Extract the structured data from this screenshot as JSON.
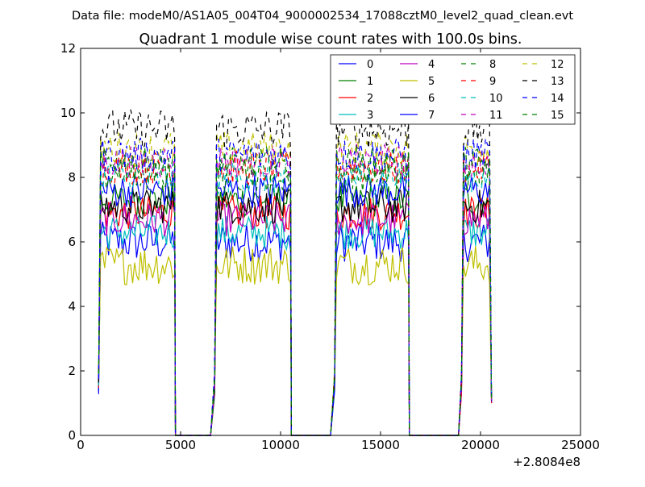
{
  "suptitle": "Data file: modeM0/AS1A05_004T04_9000002534_17088cztM0_level2_quad_clean.evt",
  "chart_data": {
    "type": "line",
    "title": "Quadrant 1 module wise count rates with 100.0s bins.",
    "xlabel": "",
    "ylabel": "",
    "x_offset_label": "+2.8084e8",
    "xlim": [
      0,
      25000
    ],
    "ylim": [
      0,
      12
    ],
    "xticks": [
      0,
      5000,
      10000,
      15000,
      20000,
      25000
    ],
    "xtick_labels": [
      "0",
      "5000",
      "10000",
      "15000",
      "20000",
      "25000"
    ],
    "yticks": [
      0,
      2,
      4,
      6,
      8,
      10,
      12
    ],
    "ytick_labels": [
      "0",
      "2",
      "4",
      "6",
      "8",
      "10",
      "12"
    ],
    "grid": false,
    "legend_position": "top-right",
    "bin_width": 100,
    "segments": [
      {
        "start": 900,
        "end": 4700,
        "gap_end": 6500
      },
      {
        "start": 6700,
        "end": 10500,
        "gap_end": 12500
      },
      {
        "start": 12700,
        "end": 16400,
        "gap_end": 18900
      },
      {
        "start": 19050,
        "end": 20550,
        "gap_end": null
      }
    ],
    "series": [
      {
        "name": "0",
        "color": "#0000ff",
        "dash": "solid",
        "mean": 6.0,
        "noise": 0.35
      },
      {
        "name": "1",
        "color": "#008000",
        "dash": "solid",
        "mean": 7.3,
        "noise": 0.3
      },
      {
        "name": "2",
        "color": "#ff0000",
        "dash": "solid",
        "mean": 6.9,
        "noise": 0.3
      },
      {
        "name": "3",
        "color": "#00bfbf",
        "dash": "solid",
        "mean": 6.3,
        "noise": 0.3
      },
      {
        "name": "4",
        "color": "#bf00bf",
        "dash": "solid",
        "mean": 6.7,
        "noise": 0.3
      },
      {
        "name": "5",
        "color": "#bfbf00",
        "dash": "solid",
        "mean": 5.3,
        "noise": 0.35
      },
      {
        "name": "6",
        "color": "#000000",
        "dash": "solid",
        "mean": 7.1,
        "noise": 0.3
      },
      {
        "name": "7",
        "color": "#0000ff",
        "dash": "solid",
        "mean": 7.6,
        "noise": 0.3
      },
      {
        "name": "8",
        "color": "#008000",
        "dash": "dashed",
        "mean": 8.1,
        "noise": 0.3
      },
      {
        "name": "9",
        "color": "#ff0000",
        "dash": "dashed",
        "mean": 8.3,
        "noise": 0.3
      },
      {
        "name": "10",
        "color": "#00bfbf",
        "dash": "dashed",
        "mean": 8.0,
        "noise": 0.3
      },
      {
        "name": "11",
        "color": "#bf00bf",
        "dash": "dashed",
        "mean": 8.5,
        "noise": 0.3
      },
      {
        "name": "12",
        "color": "#bfbf00",
        "dash": "dashed",
        "mean": 8.9,
        "noise": 0.3
      },
      {
        "name": "13",
        "color": "#000000",
        "dash": "dashed",
        "mean": 9.5,
        "noise": 0.35
      },
      {
        "name": "14",
        "color": "#0000ff",
        "dash": "dashed",
        "mean": 8.7,
        "noise": 0.3
      },
      {
        "name": "15",
        "color": "#008000",
        "dash": "dashed",
        "mean": 8.4,
        "noise": 0.3
      }
    ]
  }
}
